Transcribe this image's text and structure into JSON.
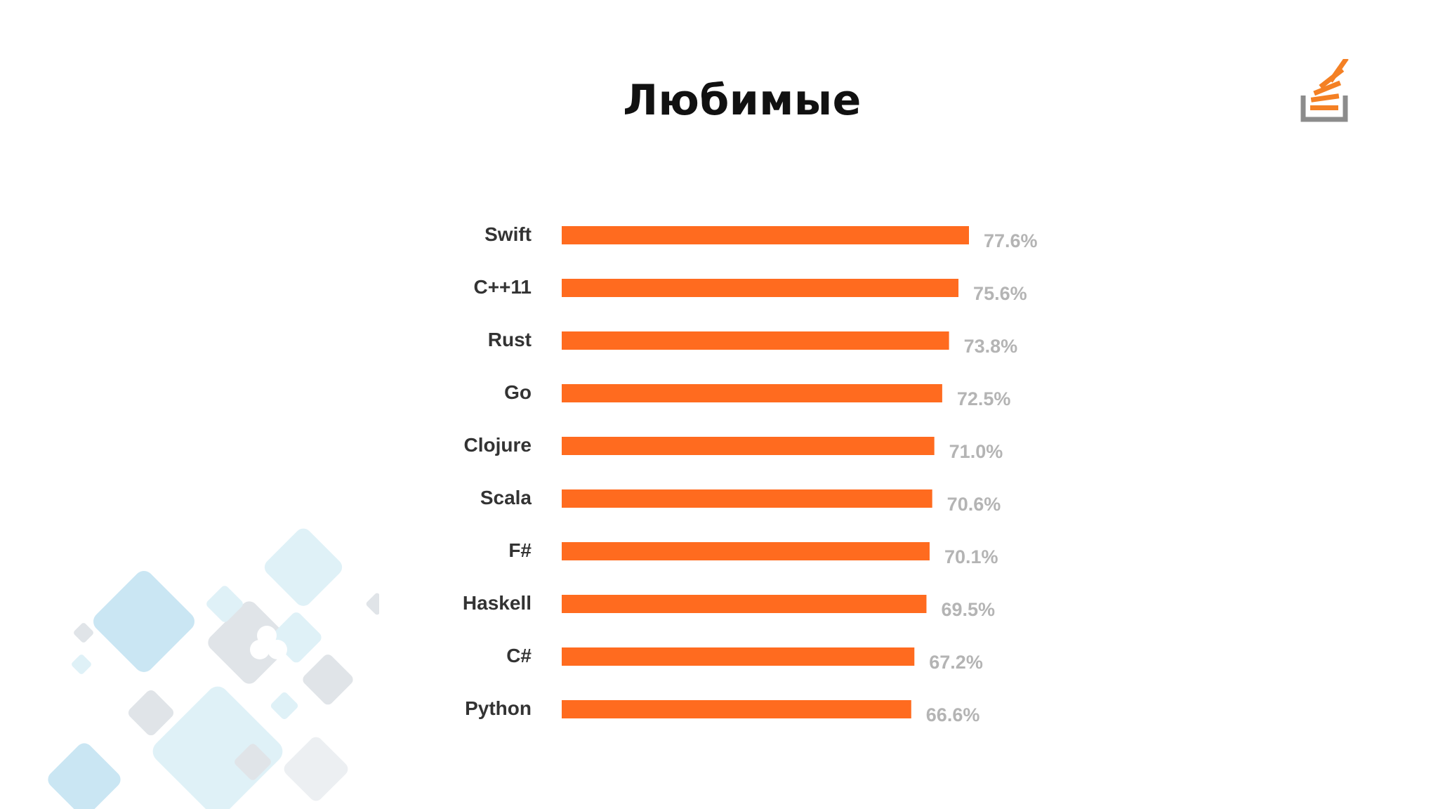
{
  "slide": {
    "title": "Любимые"
  },
  "colors": {
    "bar": "#ff6b1f",
    "value_label": "#b4b4b4",
    "category_label": "#333333",
    "logo_orange": "#f48024",
    "logo_gray": "#8c8c8c",
    "decor_blue": "#9fd3ea"
  },
  "icons": {
    "logo": "stack-overflow-logo-icon",
    "decoration": "speech-bubbles-decoration-icon"
  },
  "chart_data": {
    "type": "bar",
    "orientation": "horizontal",
    "categories": [
      "Swift",
      "C++11",
      "Rust",
      "Go",
      "Clojure",
      "Scala",
      "F#",
      "Haskell",
      "C#",
      "Python"
    ],
    "values": [
      77.6,
      75.6,
      73.8,
      72.5,
      71.0,
      70.6,
      70.1,
      69.5,
      67.2,
      66.6
    ],
    "value_labels": [
      "77.6%",
      "75.6%",
      "73.8%",
      "72.5%",
      "71.0%",
      "70.6%",
      "70.1%",
      "69.5%",
      "67.2%",
      "66.6%"
    ],
    "xlim": [
      0,
      77.6
    ],
    "grid": false,
    "legend": "none"
  }
}
